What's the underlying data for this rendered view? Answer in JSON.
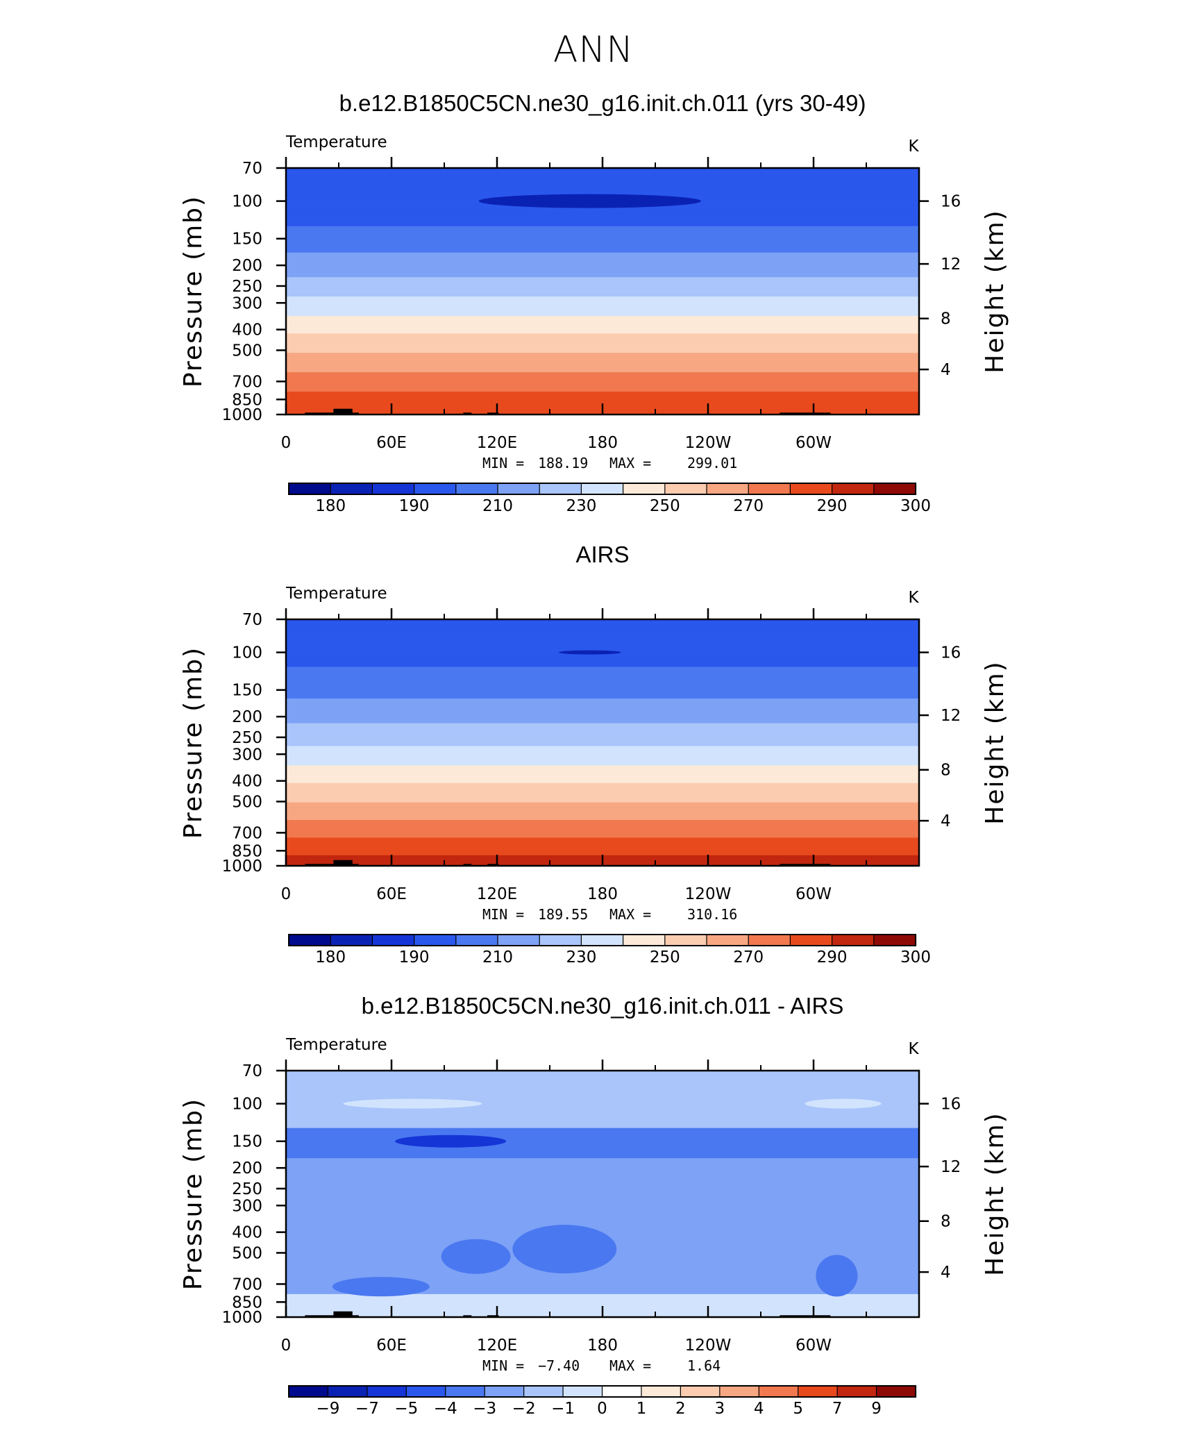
{
  "page": {
    "title": "ANN"
  },
  "colors": {
    "temp_levels": [
      "#000a8c",
      "#0a22b4",
      "#1535d6",
      "#2a57ec",
      "#4a78f0",
      "#7da2f6",
      "#a9c5fa",
      "#d2e4fd",
      "#fde9d8",
      "#fbccb0",
      "#f7a782",
      "#f1784f",
      "#e84a1e",
      "#c22710",
      "#8e0a06"
    ],
    "diff_levels": [
      "#000a8c",
      "#0a22b4",
      "#1535d6",
      "#2a57ec",
      "#4a78f0",
      "#7da2f6",
      "#a9c5fa",
      "#d2e4fd",
      "#ffffff",
      "#fde9d8",
      "#fbccb0",
      "#f7a782",
      "#f1784f",
      "#e84a1e",
      "#c22710",
      "#8e0a06"
    ],
    "land_mask": "#000000"
  },
  "chart_data": [
    {
      "type": "heatmap",
      "title": "b.e12.B1850C5CN.ne30_g16.init.ch.011 (yrs 30-49)",
      "left_string": "Temperature",
      "right_string": "K",
      "xlabel": "",
      "ylabel": "Pressure (mb)",
      "y2label": "Height (km)",
      "x_ticks": [
        "0",
        "60E",
        "120E",
        "180",
        "120W",
        "60W"
      ],
      "y_ticks": [
        "70",
        "100",
        "150",
        "200",
        "250",
        "300",
        "400",
        "500",
        "700",
        "850",
        "1000"
      ],
      "y2_ticks": [
        "16",
        "12",
        "8",
        "4"
      ],
      "stats": {
        "min_label": "MIN =",
        "min": "188.19",
        "max_label": "MAX =",
        "max": "299.01"
      },
      "colorbar": {
        "ticks": [
          "180",
          "190",
          "210",
          "230",
          "250",
          "270",
          "290",
          "300"
        ]
      },
      "profile_k": [
        {
          "p": 70,
          "t": 196
        },
        {
          "p": 100,
          "t": 193
        },
        {
          "p": 130,
          "t": 200
        },
        {
          "p": 160,
          "t": 207
        },
        {
          "p": 200,
          "t": 215
        },
        {
          "p": 250,
          "t": 224
        },
        {
          "p": 300,
          "t": 233
        },
        {
          "p": 400,
          "t": 248
        },
        {
          "p": 500,
          "t": 259
        },
        {
          "p": 700,
          "t": 275
        },
        {
          "p": 850,
          "t": 284
        },
        {
          "p": 1000,
          "t": 292
        }
      ]
    },
    {
      "type": "heatmap",
      "title": "AIRS",
      "left_string": "Temperature",
      "right_string": "K",
      "xlabel": "",
      "ylabel": "Pressure (mb)",
      "y2label": "Height (km)",
      "x_ticks": [
        "0",
        "60E",
        "120E",
        "180",
        "120W",
        "60W"
      ],
      "y_ticks": [
        "70",
        "100",
        "150",
        "200",
        "250",
        "300",
        "400",
        "500",
        "700",
        "850",
        "1000"
      ],
      "y2_ticks": [
        "16",
        "12",
        "8",
        "4"
      ],
      "stats": {
        "min_label": "MIN =",
        "min": "189.55",
        "max_label": "MAX =",
        "max": "310.16"
      },
      "colorbar": {
        "ticks": [
          "180",
          "190",
          "210",
          "230",
          "250",
          "270",
          "290",
          "300"
        ]
      },
      "profile_k": [
        {
          "p": 70,
          "t": 199
        },
        {
          "p": 100,
          "t": 196
        },
        {
          "p": 130,
          "t": 203
        },
        {
          "p": 160,
          "t": 209
        },
        {
          "p": 200,
          "t": 217
        },
        {
          "p": 250,
          "t": 226
        },
        {
          "p": 300,
          "t": 234
        },
        {
          "p": 400,
          "t": 249
        },
        {
          "p": 500,
          "t": 260
        },
        {
          "p": 700,
          "t": 277
        },
        {
          "p": 850,
          "t": 287
        },
        {
          "p": 1000,
          "t": 297
        }
      ]
    },
    {
      "type": "heatmap",
      "title": "b.e12.B1850C5CN.ne30_g16.init.ch.011 - AIRS",
      "left_string": "Temperature",
      "right_string": "K",
      "xlabel": "",
      "ylabel": "Pressure (mb)",
      "y2label": "Height (km)",
      "x_ticks": [
        "0",
        "60E",
        "120E",
        "180",
        "120W",
        "60W"
      ],
      "y_ticks": [
        "70",
        "100",
        "150",
        "200",
        "250",
        "300",
        "400",
        "500",
        "700",
        "850",
        "1000"
      ],
      "y2_ticks": [
        "16",
        "12",
        "8",
        "4"
      ],
      "stats": {
        "min_label": "MIN =",
        "min": "−7.40",
        "max_label": "MAX =",
        "max": "1.64"
      },
      "colorbar": {
        "ticks": [
          "−9",
          "−7",
          "−5",
          "−4",
          "−3",
          "−2",
          "−1",
          "0",
          "1",
          "2",
          "3",
          "4",
          "5",
          "7",
          "9"
        ]
      },
      "diff_bands_k": [
        {
          "p_top": 70,
          "p_bottom": 90,
          "d": -1.5
        },
        {
          "p_top": 90,
          "p_bottom": 130,
          "d": -1.5
        },
        {
          "p_top": 130,
          "p_bottom": 180,
          "d": -3.5
        },
        {
          "p_top": 180,
          "p_bottom": 320,
          "d": -2.5
        },
        {
          "p_top": 320,
          "p_bottom": 620,
          "d": -2.5
        },
        {
          "p_top": 620,
          "p_bottom": 780,
          "d": -2.5
        },
        {
          "p_top": 780,
          "p_bottom": 1000,
          "d": -0.5
        }
      ]
    }
  ]
}
